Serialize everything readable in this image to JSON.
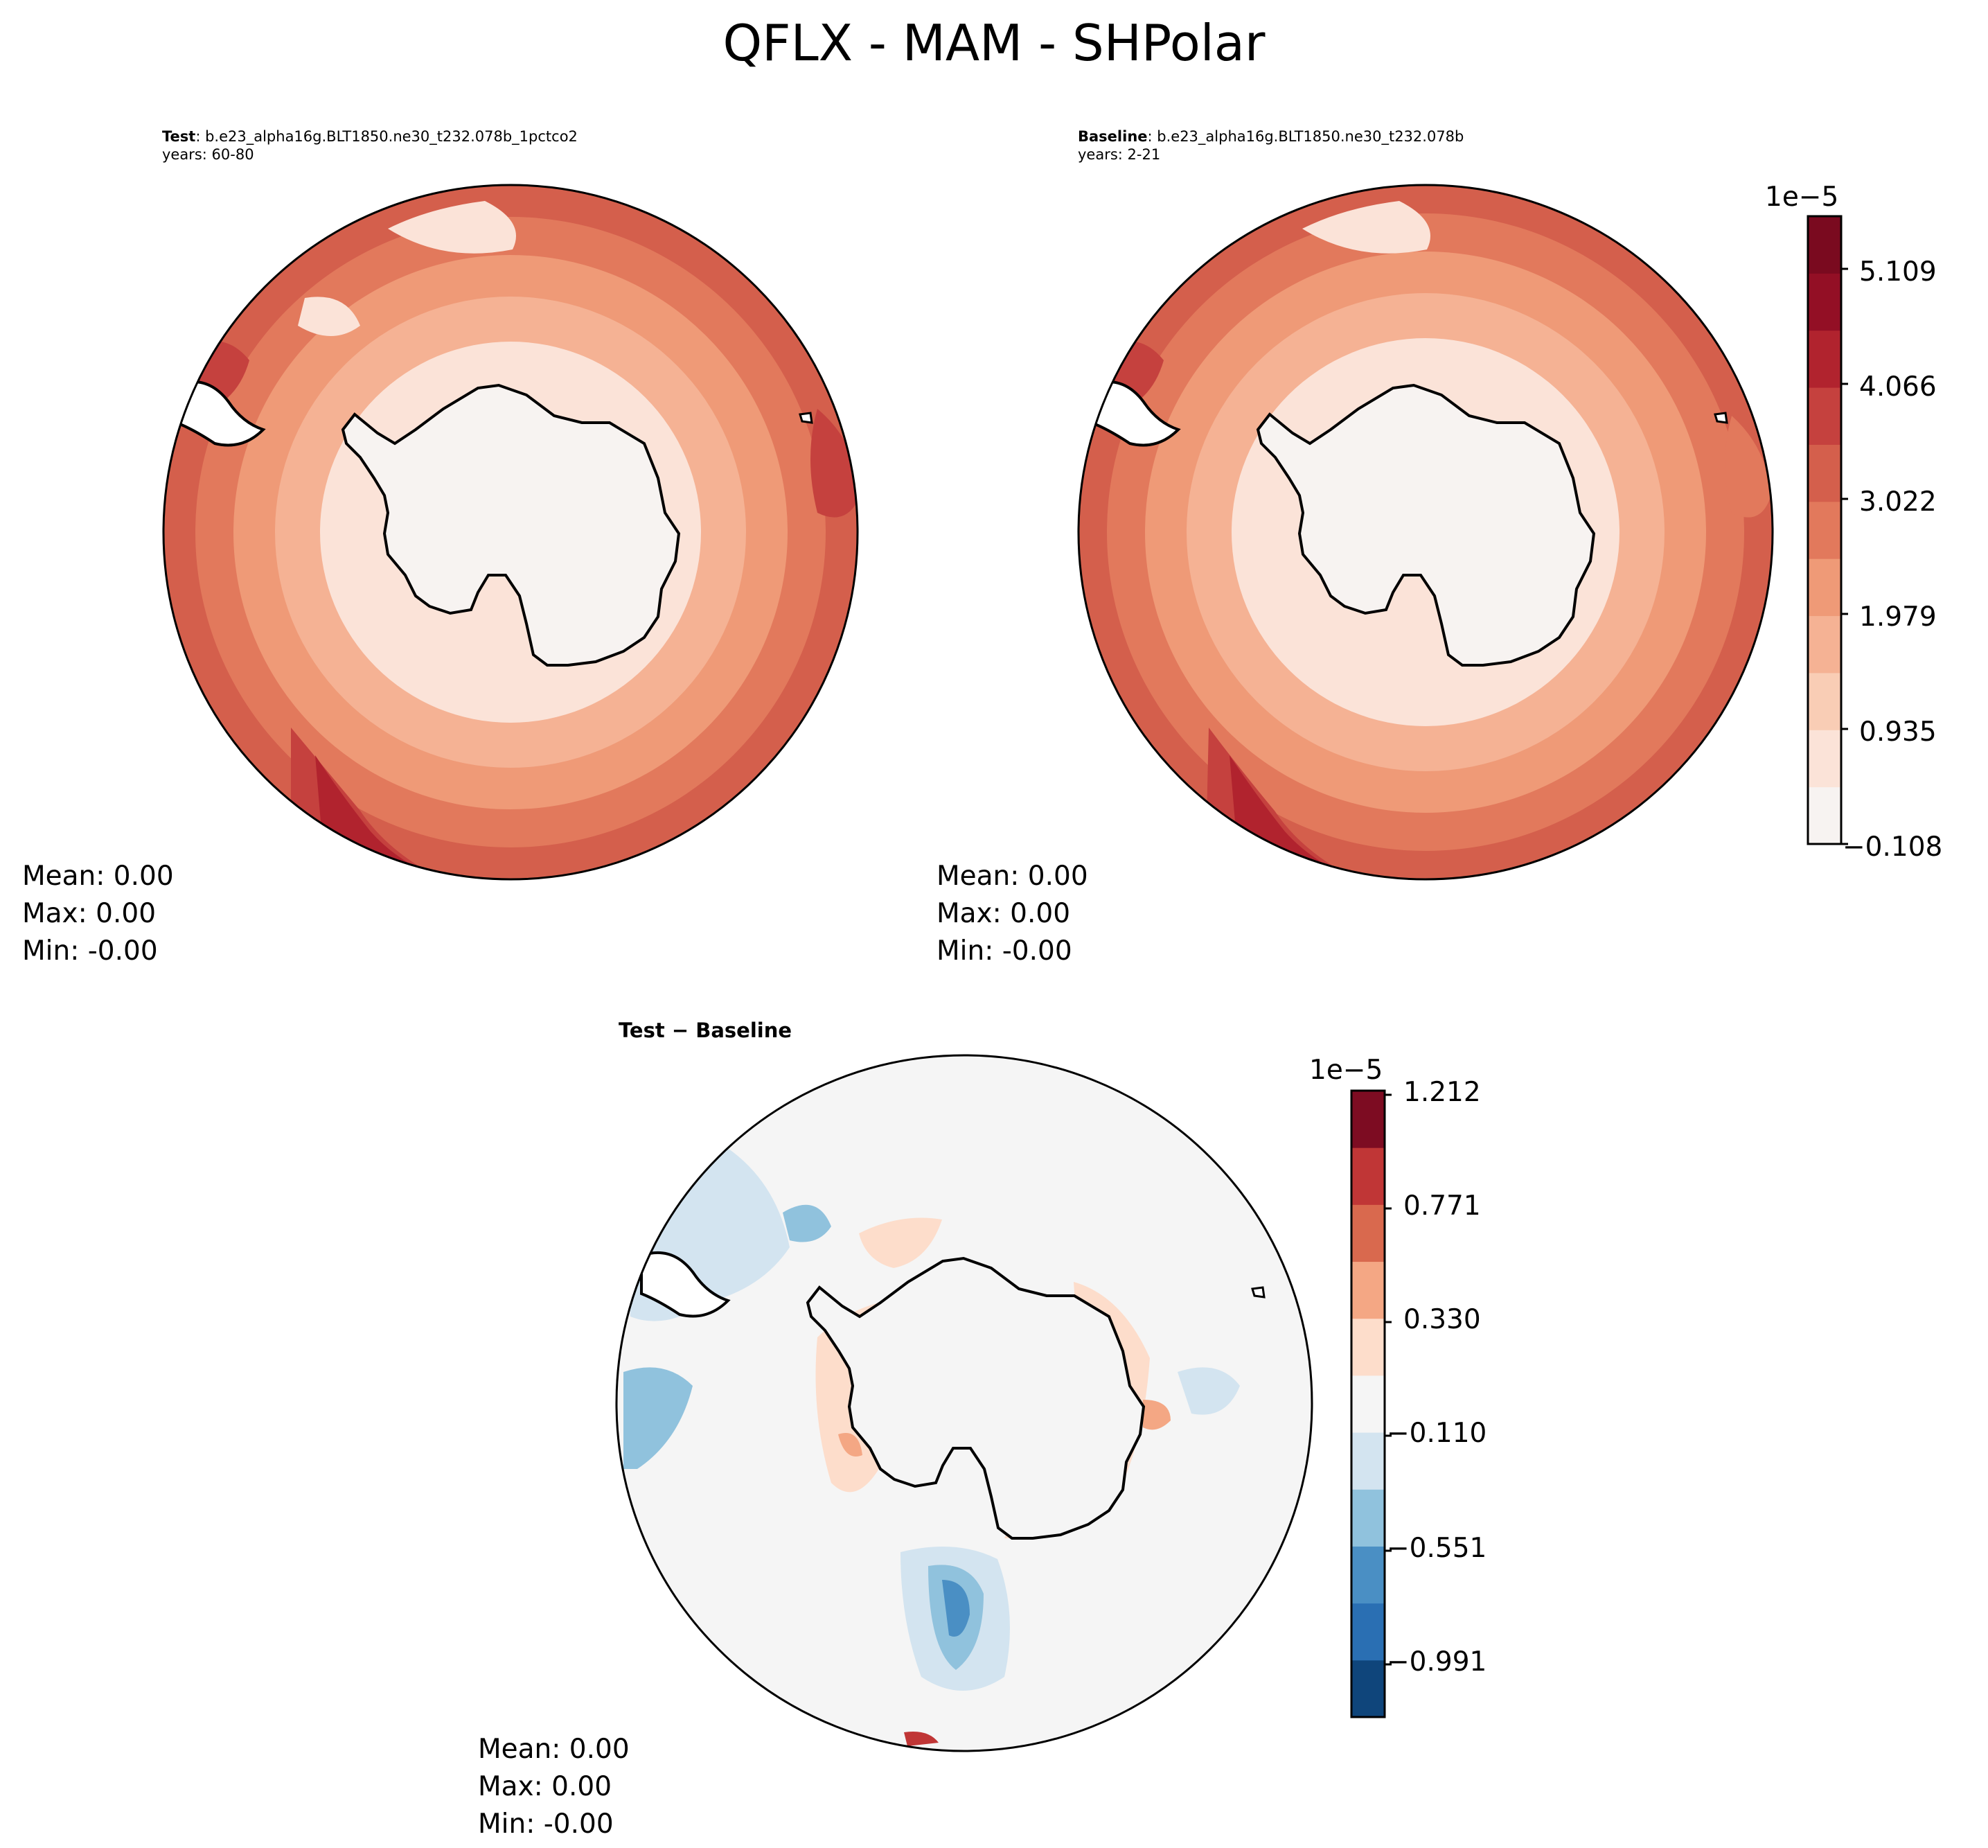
{
  "title": "QFLX - MAM - SHPolar",
  "colors": {
    "seq": [
      "#f7f3f1",
      "#fbe3d8",
      "#f9cdb5",
      "#f5b294",
      "#ef9a77",
      "#e2795c",
      "#d45f4c",
      "#c5413e",
      "#b1232e",
      "#930f25",
      "#7a0a1f"
    ],
    "div": [
      "#0f457b",
      "#2a6fb3",
      "#4a8fc4",
      "#90c2dd",
      "#d3e4f0",
      "#f5f5f5",
      "#fdddcb",
      "#f4a784",
      "#d9694e",
      "#c03636",
      "#7d0c22"
    ],
    "coast": "#000000"
  },
  "panels": {
    "test": {
      "label_bold": "Test",
      "label_rest": ": b.e23_alpha16g.BLT1850.ne30_t232.078b_1pctco2",
      "years": "years: 60-80",
      "stats": {
        "mean": "Mean:  0.00",
        "max": "Max:  0.00",
        "min": "Min: -0.00"
      }
    },
    "baseline": {
      "label_bold": "Baseline",
      "label_rest": ": b.e23_alpha16g.BLT1850.ne30_t232.078b",
      "years": "years: 2-21",
      "stats": {
        "mean": "Mean:  0.00",
        "max": "Max:  0.00",
        "min": "Min: -0.00"
      }
    },
    "diff": {
      "label": "Test − Baseline",
      "stats": {
        "mean": "Mean:  0.00",
        "max": "Max:  0.00",
        "min": "Min: -0.00"
      }
    }
  },
  "colorbars": {
    "main": {
      "exponent": "1e−5",
      "ticks": [
        "5.109",
        "4.066",
        "3.022",
        "1.979",
        "0.935",
        "−0.108"
      ]
    },
    "diff": {
      "exponent": "1e−5",
      "ticks": [
        "1.212",
        "0.771",
        "0.330",
        "−0.110",
        "−0.551",
        "−0.991"
      ]
    }
  },
  "chart_data": [
    {
      "type": "heatmap",
      "title": "Test : b.e23_alpha16g.BLT1850.ne30_t232.078b_1pctco2  years: 60-80",
      "projection": "south-polar-stereographic",
      "variable": "QFLX",
      "units_exponent": "1e-5",
      "levels": [
        -0.108,
        0.935,
        1.979,
        3.022,
        4.066,
        5.109
      ],
      "stats": {
        "mean": 0.0,
        "max": 0.0,
        "min": -0.0
      }
    },
    {
      "type": "heatmap",
      "title": "Baseline : b.e23_alpha16g.BLT1850.ne30_t232.078b  years: 2-21",
      "projection": "south-polar-stereographic",
      "variable": "QFLX",
      "units_exponent": "1e-5",
      "levels": [
        -0.108,
        0.935,
        1.979,
        3.022,
        4.066,
        5.109
      ],
      "stats": {
        "mean": 0.0,
        "max": 0.0,
        "min": -0.0
      }
    },
    {
      "type": "heatmap",
      "title": "Test − Baseline",
      "projection": "south-polar-stereographic",
      "variable": "QFLX",
      "units_exponent": "1e-5",
      "levels": [
        -0.991,
        -0.551,
        -0.11,
        0.33,
        0.771,
        1.212
      ],
      "stats": {
        "mean": 0.0,
        "max": 0.0,
        "min": -0.0
      }
    }
  ]
}
